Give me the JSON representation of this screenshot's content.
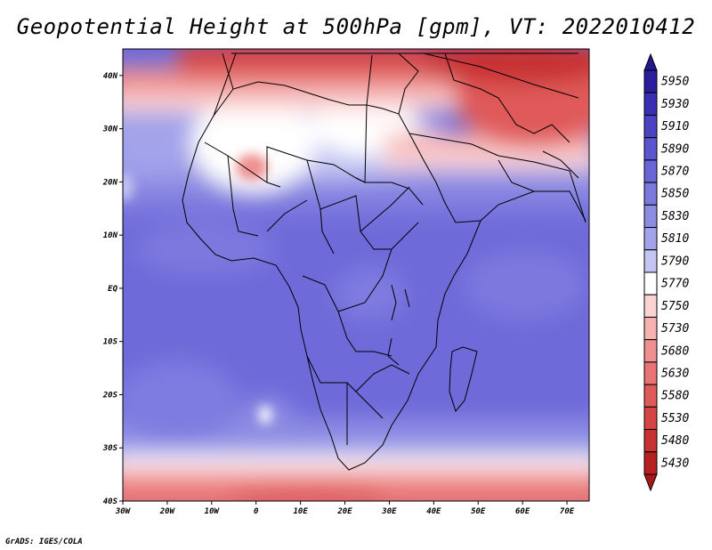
{
  "title": "Geopotential Height at 500hPa [gpm], VT: 2022010412",
  "footer": "GrADS: IGES/COLA",
  "map": {
    "lon_range": [
      -30,
      75
    ],
    "lat_range": [
      -40,
      45
    ],
    "lon_ticks": [
      {
        "value": -30,
        "label": "30W"
      },
      {
        "value": -20,
        "label": "20W"
      },
      {
        "value": -10,
        "label": "10W"
      },
      {
        "value": 0,
        "label": "0"
      },
      {
        "value": 10,
        "label": "10E"
      },
      {
        "value": 20,
        "label": "20E"
      },
      {
        "value": 30,
        "label": "30E"
      },
      {
        "value": 40,
        "label": "40E"
      },
      {
        "value": 50,
        "label": "50E"
      },
      {
        "value": 60,
        "label": "60E"
      },
      {
        "value": 70,
        "label": "70E"
      }
    ],
    "lat_ticks": [
      {
        "value": 40,
        "label": "40N"
      },
      {
        "value": 30,
        "label": "30N"
      },
      {
        "value": 20,
        "label": "20N"
      },
      {
        "value": 10,
        "label": "10N"
      },
      {
        "value": 0,
        "label": "EQ"
      },
      {
        "value": -10,
        "label": "10S"
      },
      {
        "value": -20,
        "label": "20S"
      },
      {
        "value": -30,
        "label": "30S"
      },
      {
        "value": -40,
        "label": "40S"
      }
    ]
  },
  "colorbar": {
    "levels": [
      {
        "value": "5950",
        "color": "#2a1e9e"
      },
      {
        "value": "5930",
        "color": "#3a2fb2"
      },
      {
        "value": "5910",
        "color": "#4a42c2"
      },
      {
        "value": "5890",
        "color": "#5b55d0"
      },
      {
        "value": "5870",
        "color": "#6a66d8"
      },
      {
        "value": "5850",
        "color": "#7b78de"
      },
      {
        "value": "5830",
        "color": "#8d8ce3"
      },
      {
        "value": "5810",
        "color": "#a2a3ea"
      },
      {
        "value": "5790",
        "color": "#c4c5f2"
      },
      {
        "value": "5770",
        "color": "#ffffff"
      },
      {
        "value": "5750",
        "color": "#fbd3d3"
      },
      {
        "value": "5730",
        "color": "#f6b1b1"
      },
      {
        "value": "5680",
        "color": "#ef9090"
      },
      {
        "value": "5630",
        "color": "#e87474"
      },
      {
        "value": "5580",
        "color": "#e05a5a"
      },
      {
        "value": "5530",
        "color": "#d64545"
      },
      {
        "value": "5480",
        "color": "#c83232"
      },
      {
        "value": "5430",
        "color": "#b82020"
      }
    ],
    "top_color": "#24188f",
    "bottom_color": "#a81818"
  }
}
